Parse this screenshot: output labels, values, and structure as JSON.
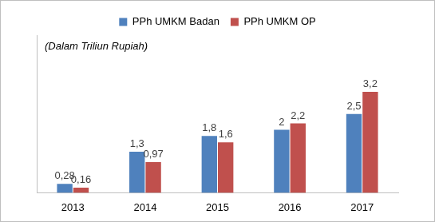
{
  "chart_data": {
    "type": "bar",
    "annotations": [
      "(Dalam Triliun Rupiah)"
    ],
    "categories": [
      "2013",
      "2014",
      "2015",
      "2016",
      "2017"
    ],
    "series": [
      {
        "name": "PPh UMKM Badan",
        "color": "#4f81bd",
        "values": [
          0.28,
          1.3,
          1.8,
          2,
          2.5
        ],
        "value_labels": [
          "0,28",
          "1,3",
          "1,8",
          "2",
          "2,5"
        ]
      },
      {
        "name": "PPh UMKM OP",
        "color": "#c0504d",
        "values": [
          0.16,
          0.97,
          1.6,
          2.2,
          3.2
        ],
        "value_labels": [
          "0,16",
          "0,97",
          "1,6",
          "2,2",
          "3,2"
        ]
      }
    ],
    "ylim": [
      0,
      5
    ],
    "legend": "top",
    "data_labels": true,
    "tick_labels": "x",
    "grid": false
  }
}
